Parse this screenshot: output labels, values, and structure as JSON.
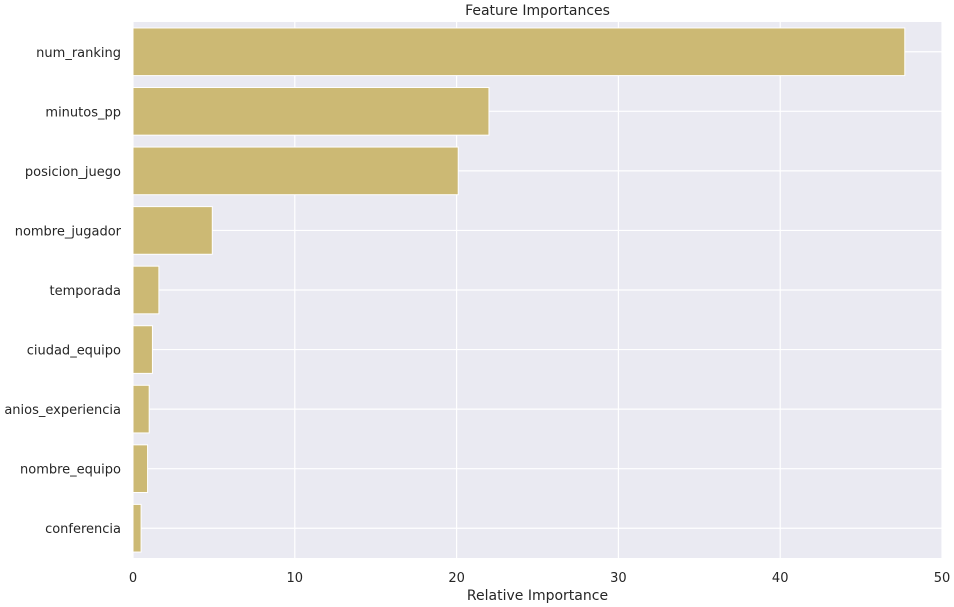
{
  "chart_data": {
    "type": "bar",
    "orientation": "horizontal",
    "title": "Feature Importances",
    "xlabel": "Relative Importance",
    "ylabel": "",
    "xlim": [
      0,
      50
    ],
    "x_ticks": [
      "0",
      "10",
      "20",
      "30",
      "40",
      "50"
    ],
    "categories": [
      "num_ranking",
      "minutos_pp",
      "posicion_juego",
      "nombre_jugador",
      "temporada",
      "ciudad_equipo",
      "anios_experiencia",
      "nombre_equipo",
      "conferencia"
    ],
    "values": [
      47.7,
      22.0,
      20.1,
      4.9,
      1.6,
      1.2,
      1.0,
      0.9,
      0.5
    ],
    "grid": true,
    "colors": {
      "bar": "#ccb974",
      "plot_background": "#eaeaf2",
      "grid": "#ffffff"
    }
  }
}
